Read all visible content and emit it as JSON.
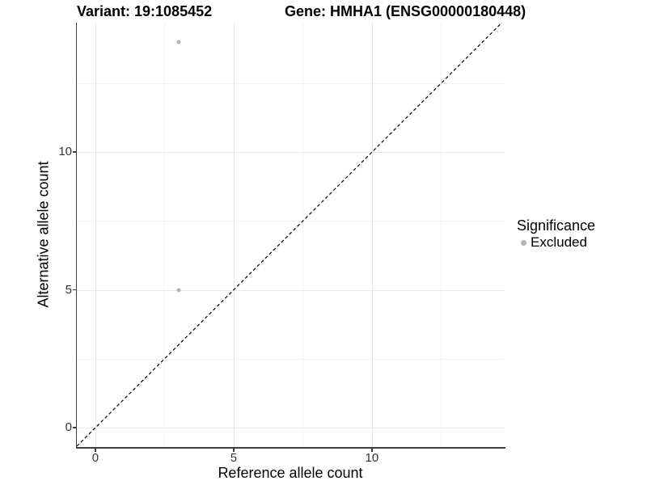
{
  "chart_data": {
    "type": "scatter",
    "title_left": "Variant: 19:1085452",
    "title_right": "Gene: HMHA1 (ENSG00000180448)",
    "xlabel": "Reference allele count",
    "ylabel": "Alternative allele count",
    "xlim": [
      -0.67,
      14.77
    ],
    "ylim": [
      -0.7,
      14.7
    ],
    "x_ticks": {
      "values": [
        0,
        5,
        10
      ],
      "labels": [
        "0",
        "5",
        "10"
      ]
    },
    "y_ticks": {
      "values": [
        0,
        5,
        10
      ],
      "labels": [
        "0",
        "5",
        "10"
      ]
    },
    "x_minor_ticks": [
      2.5,
      7.5,
      12.5
    ],
    "y_minor_ticks": [
      2.5,
      7.5,
      12.5
    ],
    "grid": "major and minor gridlines, white background",
    "series": [
      {
        "name": "Excluded",
        "color": "#b5b5b5",
        "points": [
          {
            "x": 3,
            "y": 14
          },
          {
            "x": 3,
            "y": 5
          }
        ]
      }
    ],
    "reference_line": {
      "kind": "identity y=x",
      "style": "dashed",
      "color": "#000000"
    },
    "legend": {
      "title": "Significance",
      "position": "right",
      "entries": [
        {
          "label": "Excluded",
          "color": "#b5b5b5"
        }
      ]
    }
  },
  "colors": {
    "background": "#ffffff",
    "grid_major": "#e8e8e8",
    "grid_minor": "#f4f4f4",
    "axis_line": "#3c3c3c",
    "tick_label": "#333333",
    "title_text": "#000000",
    "point": "#b5b5b5"
  }
}
